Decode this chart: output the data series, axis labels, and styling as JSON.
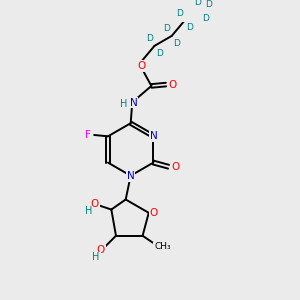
{
  "background_color": "#ebebeb",
  "atom_colors": {
    "C": "#000000",
    "N": "#0000cc",
    "O": "#ff0000",
    "F": "#ff00ff",
    "D": "#008080",
    "H": "#008080"
  },
  "bond_color": "#000000",
  "figsize": [
    3.0,
    3.0
  ],
  "dpi": 100
}
